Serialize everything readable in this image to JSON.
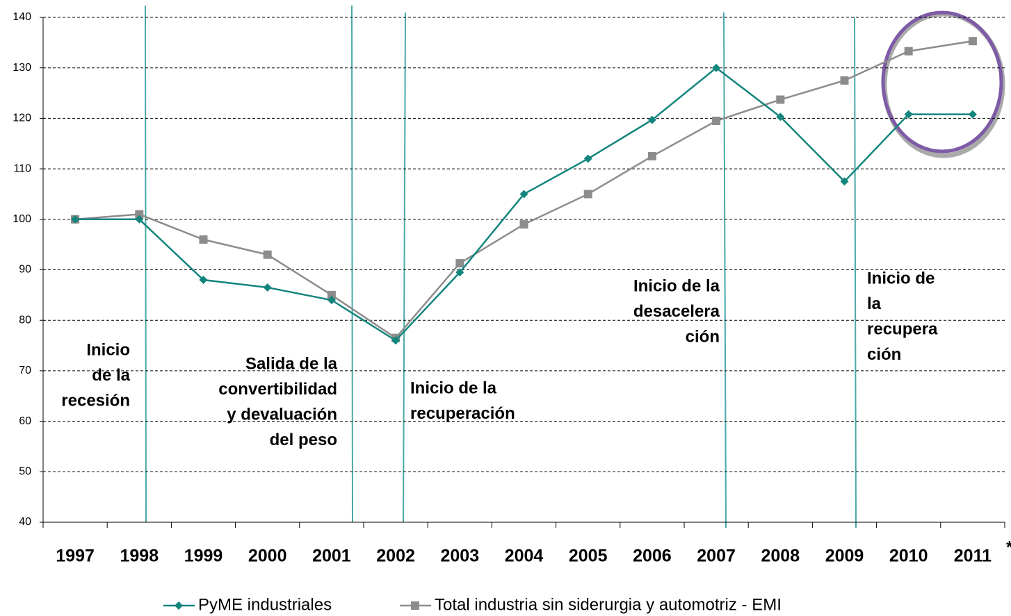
{
  "chart_data": {
    "type": "line",
    "categories": [
      "1997",
      "1998",
      "1999",
      "2000",
      "2001",
      "2002",
      "2003",
      "2004",
      "2005",
      "2006",
      "2007",
      "2008",
      "2009",
      "2010",
      "2011"
    ],
    "footnote_mark": "*",
    "series": [
      {
        "name": "PyME industriales",
        "color": "#13857d",
        "marker": "diamond",
        "values": [
          100,
          100,
          88,
          86.5,
          84,
          76,
          89.5,
          105,
          112,
          119.7,
          130,
          120.3,
          107.5,
          120.8,
          120.8
        ]
      },
      {
        "name": "Total industria sin siderurgia y automotriz - EMI",
        "color": "#8c8c8c",
        "marker": "square",
        "values": [
          100,
          101,
          96,
          93,
          85,
          76.5,
          91.3,
          99,
          105,
          112.5,
          119.5,
          123.7,
          127.5,
          133.3,
          135.3
        ]
      }
    ],
    "ylim": [
      40,
      140
    ],
    "yticks": [
      40,
      50,
      60,
      70,
      80,
      90,
      100,
      110,
      120,
      130,
      140
    ],
    "grid": true,
    "annotations": [
      {
        "lines": [
          "Inicio",
          "de la",
          "recesión"
        ]
      },
      {
        "lines": [
          "Salida de la",
          "convertibilidad",
          "y devaluación",
          "del peso"
        ]
      },
      {
        "lines": [
          "Inicio de la",
          "recuperación"
        ]
      },
      {
        "lines": [
          "Inicio de la",
          "desacelera",
          "ción"
        ]
      },
      {
        "lines": [
          "Inicio de",
          "la",
          "recupera",
          "ción"
        ]
      }
    ]
  }
}
